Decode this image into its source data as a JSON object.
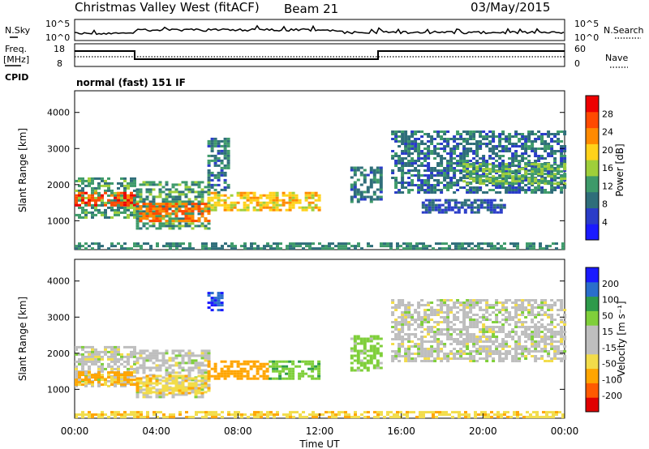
{
  "header": {
    "station": "Christmas Valley West (fitACF)",
    "beam": "Beam 21",
    "date": "03/May/2015"
  },
  "top_panels": {
    "nsky_label": "N.Sky",
    "nsky_ticks": [
      "10^5",
      "10^0"
    ],
    "nsearch_label": "N.Search",
    "nsearch_ticks": [
      "10^5",
      "10^0"
    ],
    "freq_label_1": "Freq.",
    "freq_label_2": "[MHz]",
    "freq_ticks": [
      "18",
      "8"
    ],
    "nave_label": "Nave",
    "nave_ticks": [
      "60",
      "0"
    ],
    "cpid_label": "CPID",
    "cpid_text": "normal (fast) 151 IF"
  },
  "colors": {
    "power_scale": [
      "#1a1aff",
      "#2a3cc8",
      "#2f6e7a",
      "#3e9a6a",
      "#9fcf3a",
      "#ffd21a",
      "#ff8a00",
      "#ff4a00",
      "#ee0000"
    ],
    "velocity_scale": [
      "#e00000",
      "#ff5a00",
      "#ffa500",
      "#f2dc4a",
      "#bebebe",
      "#bebebe",
      "#7fcf3a",
      "#2e9a4a",
      "#2a6ecb",
      "#1a1aff"
    ]
  },
  "chart_data": [
    {
      "type": "heatmap",
      "name": "power-panel",
      "ylabel": "Slant Range [km]",
      "ylim": [
        200,
        4600
      ],
      "xlim": [
        0,
        24
      ],
      "y_ticks": [
        1000,
        2000,
        3000,
        4000
      ],
      "colorbar": {
        "label": "Power [dB]",
        "range": [
          0,
          32
        ],
        "ticks": [
          "4",
          "8",
          "12",
          "16",
          "20",
          "24",
          "28"
        ]
      },
      "regions": [
        {
          "t": [
            0.0,
            3.0
          ],
          "r": [
            1100,
            2200
          ],
          "level": 12
        },
        {
          "t": [
            0.0,
            3.0
          ],
          "r": [
            1400,
            1800
          ],
          "level": 28
        },
        {
          "t": [
            3.0,
            6.5
          ],
          "r": [
            800,
            2100
          ],
          "level": 12
        },
        {
          "t": [
            3.0,
            6.5
          ],
          "r": [
            1000,
            1500
          ],
          "level": 26
        },
        {
          "t": [
            6.5,
            12.0
          ],
          "r": [
            1300,
            1800
          ],
          "level": 20
        },
        {
          "t": [
            6.5,
            7.5
          ],
          "r": [
            1800,
            3300
          ],
          "level": 8
        },
        {
          "t": [
            13.5,
            15.0
          ],
          "r": [
            1500,
            2500
          ],
          "level": 8
        },
        {
          "t": [
            15.5,
            24.0
          ],
          "r": [
            1800,
            3500
          ],
          "level": 8
        },
        {
          "t": [
            19.0,
            24.0
          ],
          "r": [
            2000,
            2600
          ],
          "level": 14
        },
        {
          "t": [
            17.0,
            21.0
          ],
          "r": [
            1200,
            1600
          ],
          "level": 6
        },
        {
          "t": [
            0.0,
            24.0
          ],
          "r": [
            200,
            400
          ],
          "level": 10
        }
      ]
    },
    {
      "type": "heatmap",
      "name": "velocity-panel",
      "ylabel": "Slant Range [km]",
      "xlabel": "Time UT",
      "ylim": [
        200,
        4600
      ],
      "xlim": [
        0,
        24
      ],
      "y_ticks": [
        1000,
        2000,
        3000,
        4000
      ],
      "x_ticks": [
        "00:00",
        "04:00",
        "08:00",
        "12:00",
        "16:00",
        "20:00",
        "00:00"
      ],
      "colorbar": {
        "label": "Velocity [m s⁻¹]",
        "range": [
          -250,
          250
        ],
        "ticks": [
          "200",
          "100",
          "50",
          "15",
          "-15",
          "-50",
          "-100",
          "-200"
        ]
      },
      "regions": [
        {
          "t": [
            0.0,
            3.0
          ],
          "r": [
            1100,
            2200
          ],
          "v": 0
        },
        {
          "t": [
            0.0,
            3.0
          ],
          "r": [
            1100,
            1500
          ],
          "v": -60
        },
        {
          "t": [
            3.0,
            6.5
          ],
          "r": [
            800,
            2100
          ],
          "v": 0
        },
        {
          "t": [
            3.0,
            6.5
          ],
          "r": [
            900,
            1400
          ],
          "v": -40
        },
        {
          "t": [
            6.5,
            9.5
          ],
          "r": [
            1300,
            1800
          ],
          "v": -80
        },
        {
          "t": [
            9.5,
            12.0
          ],
          "r": [
            1300,
            1800
          ],
          "v": 40
        },
        {
          "t": [
            6.5,
            7.2
          ],
          "r": [
            3200,
            3700
          ],
          "v": 200
        },
        {
          "t": [
            13.5,
            15.0
          ],
          "r": [
            1500,
            2500
          ],
          "v": 30
        },
        {
          "t": [
            15.5,
            24.0
          ],
          "r": [
            1800,
            3500
          ],
          "v": 0
        },
        {
          "t": [
            0.0,
            24.0
          ],
          "r": [
            200,
            400
          ],
          "v": -40
        }
      ]
    }
  ]
}
